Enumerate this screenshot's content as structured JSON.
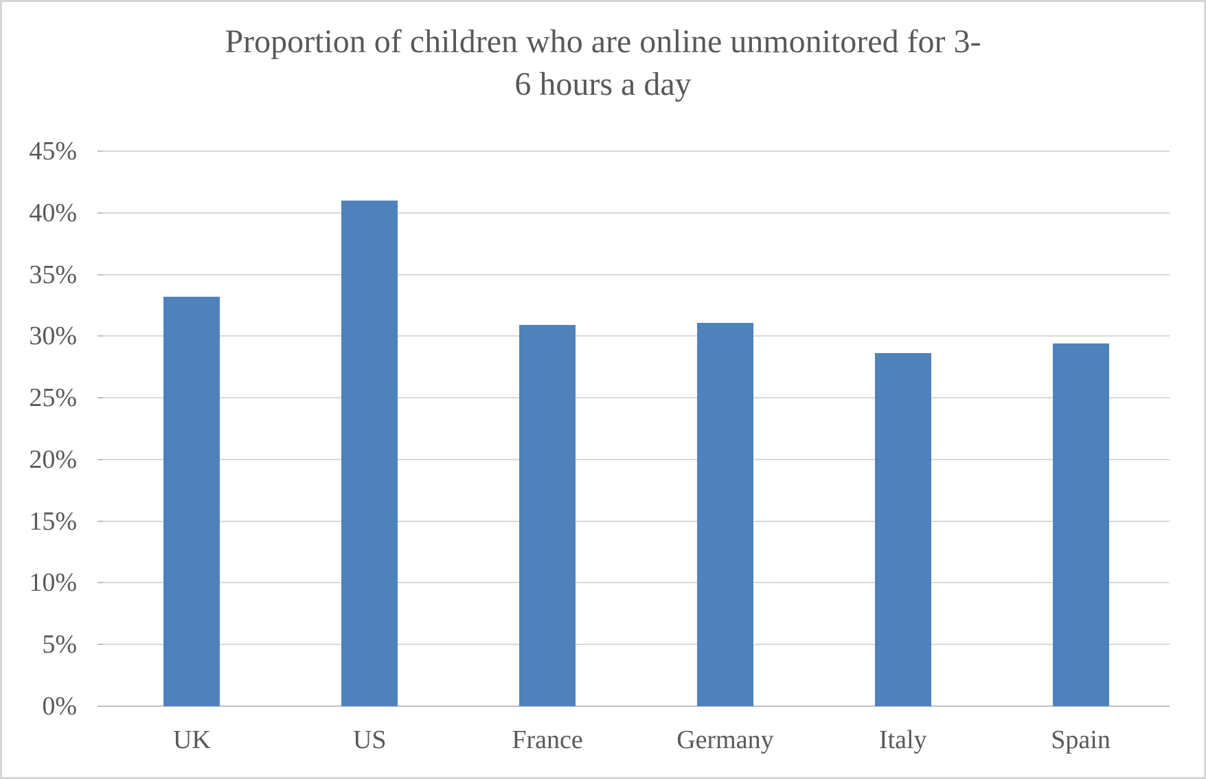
{
  "window": {
    "background": "#ffffff",
    "frame_border_color": "#d6d6d6"
  },
  "chart_data": {
    "type": "bar",
    "title": "Proportion of children who are online unmonitored for 3-6 hours a day",
    "title_lines": [
      "Proportion of children who are online unmonitored for 3-",
      "6 hours a day"
    ],
    "categories": [
      "UK",
      "US",
      "France",
      "Germany",
      "Italy",
      "Spain"
    ],
    "values": [
      33.2,
      41,
      30.9,
      31.1,
      28.6,
      29.4
    ],
    "xlabel": "",
    "ylabel": "",
    "ylim": [
      0,
      45
    ],
    "y_tick_step": 5,
    "y_tick_labels": [
      "0%",
      "5%",
      "10%",
      "15%",
      "20%",
      "25%",
      "30%",
      "35%",
      "40%",
      "45%"
    ],
    "grid": true,
    "legend": false,
    "colors": {
      "bar": "#4f81bd",
      "gridline": "#d9d9d9",
      "axis_line": "#bfbfbf",
      "text": "#595959"
    }
  }
}
